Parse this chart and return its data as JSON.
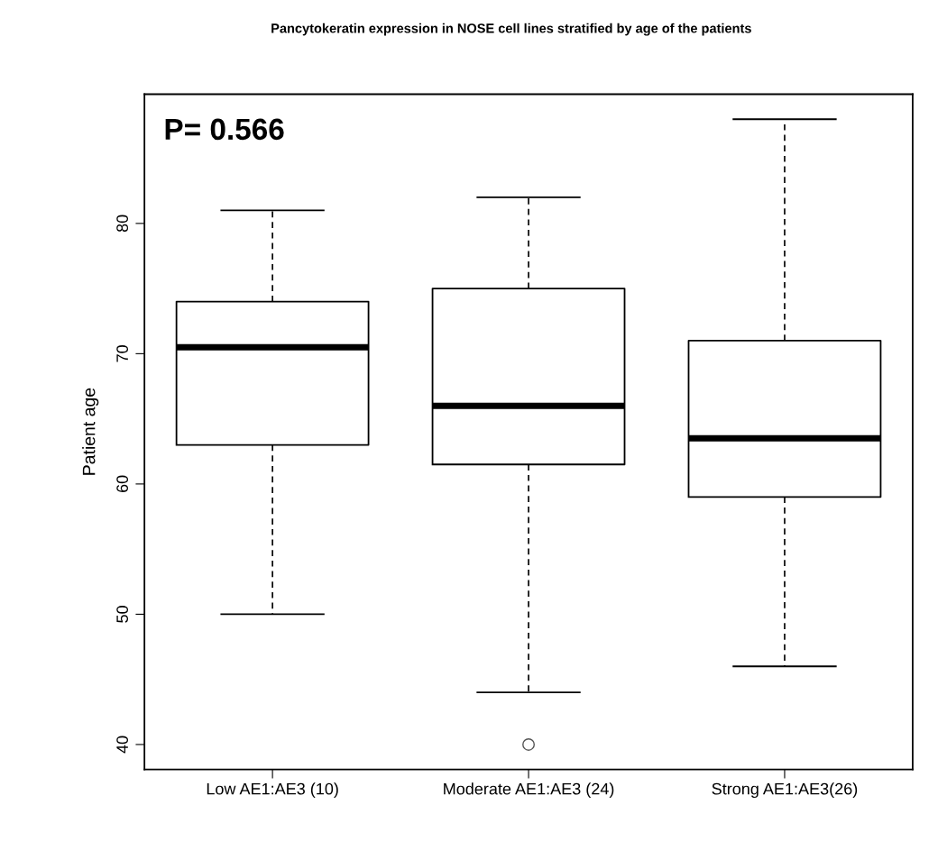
{
  "chart_data": {
    "type": "box",
    "title": "Pancytokeratin expression in NOSE cell lines stratified by age of the patients",
    "ylabel": "Patient age",
    "categories": [
      "Low AE1:AE3 (10)",
      "Moderate AE1:AE3 (24)",
      "Strong AE1:AE3(26)"
    ],
    "boxes": [
      {
        "low": 50,
        "q1": 63,
        "median": 70.5,
        "q3": 74,
        "high": 81
      },
      {
        "low": 44,
        "q1": 61.5,
        "median": 66,
        "q3": 75,
        "high": 82,
        "outliers": [
          40
        ]
      },
      {
        "low": 46,
        "q1": 59,
        "median": 63.5,
        "q3": 71,
        "high": 88
      }
    ],
    "ylim": [
      38.08,
      89.92
    ],
    "yticks": [
      40,
      50,
      60,
      70,
      80
    ],
    "grid": false,
    "annotations": [
      "P= 0.566"
    ]
  }
}
